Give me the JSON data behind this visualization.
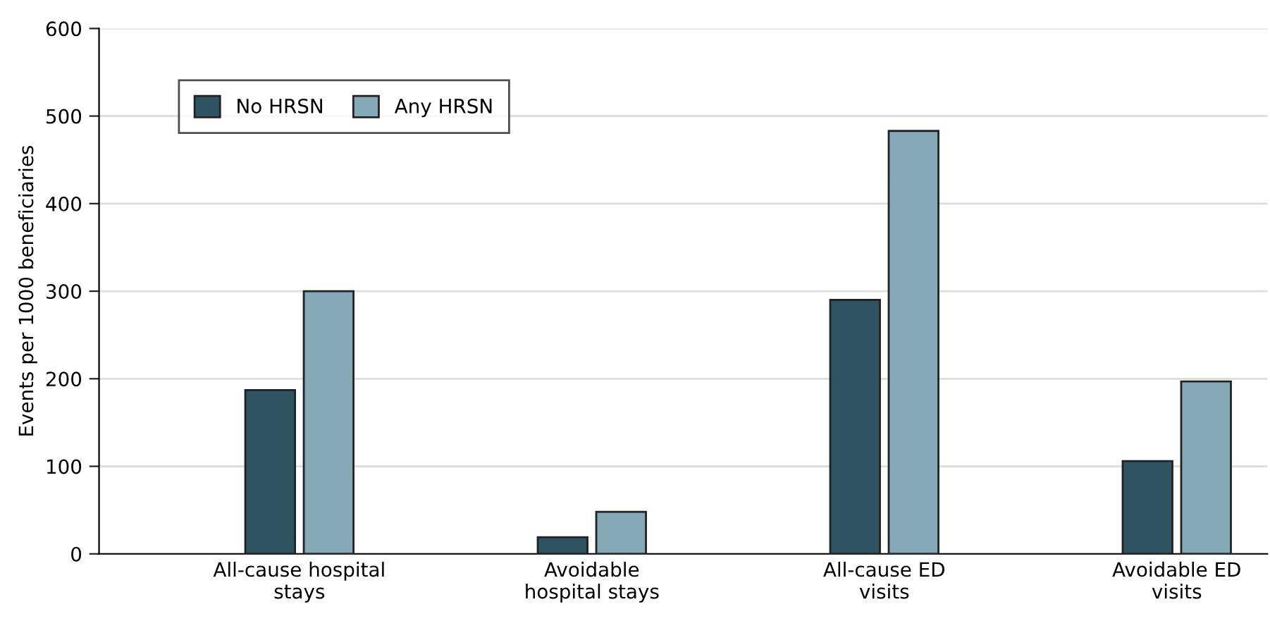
{
  "chart_data": {
    "type": "bar",
    "ylabel": "Events per 1000 beneficiaries",
    "categories": [
      "All-cause hospital\nstays",
      "Avoidable\nhospital stays",
      "All-cause ED\nvisits",
      "Avoidable ED\nvisits"
    ],
    "series": [
      {
        "name": "No HRSN",
        "color": "#2e5461",
        "values": [
          187,
          19,
          290,
          106
        ]
      },
      {
        "name": "Any HRSN",
        "color": "#86a9b8",
        "values": [
          300,
          48,
          483,
          197
        ]
      }
    ],
    "ylim": [
      0,
      600
    ],
    "yticks": [
      0,
      100,
      200,
      300,
      400,
      500,
      600
    ],
    "grid": "y",
    "legend": "top left"
  }
}
